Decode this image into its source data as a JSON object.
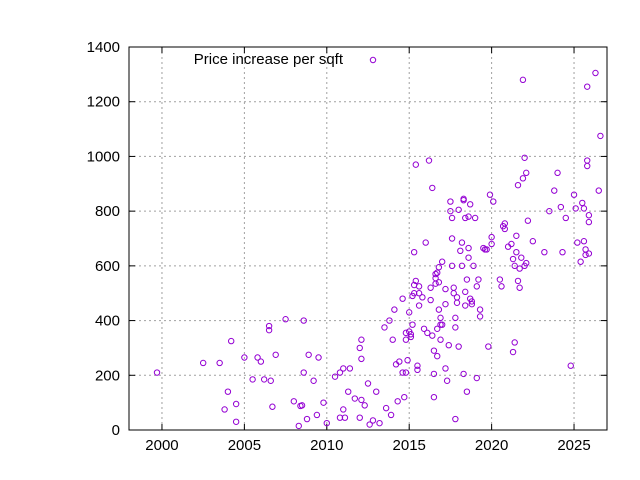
{
  "chart_data": {
    "type": "scatter",
    "title": "",
    "xlabel": "",
    "ylabel": "",
    "xlim": [
      1998,
      2027
    ],
    "ylim": [
      0,
      1400
    ],
    "x_ticks": [
      2000,
      2005,
      2010,
      2015,
      2020,
      2025
    ],
    "y_ticks": [
      0,
      200,
      400,
      600,
      800,
      1000,
      1200,
      1400
    ],
    "grid": true,
    "legend_position": "top-left",
    "series": [
      {
        "name": "Price increase per sqft",
        "color": "#9400d3",
        "marker": "open-circle",
        "points": [
          [
            1999.7,
            210
          ],
          [
            2002.5,
            245
          ],
          [
            2003.5,
            245
          ],
          [
            2003.8,
            75
          ],
          [
            2004.0,
            140
          ],
          [
            2004.2,
            325
          ],
          [
            2004.5,
            95
          ],
          [
            2004.5,
            30
          ],
          [
            2005.0,
            265
          ],
          [
            2005.5,
            185
          ],
          [
            2005.8,
            265
          ],
          [
            2006.0,
            250
          ],
          [
            2006.2,
            185
          ],
          [
            2006.5,
            380
          ],
          [
            2006.5,
            365
          ],
          [
            2006.6,
            180
          ],
          [
            2006.7,
            85
          ],
          [
            2006.9,
            275
          ],
          [
            2007.5,
            405
          ],
          [
            2008.0,
            105
          ],
          [
            2008.3,
            15
          ],
          [
            2008.4,
            88
          ],
          [
            2008.5,
            90
          ],
          [
            2008.6,
            210
          ],
          [
            2008.6,
            400
          ],
          [
            2008.8,
            40
          ],
          [
            2008.9,
            275
          ],
          [
            2009.2,
            180
          ],
          [
            2009.4,
            55
          ],
          [
            2009.5,
            265
          ],
          [
            2009.8,
            100
          ],
          [
            2010.0,
            25
          ],
          [
            2010.5,
            195
          ],
          [
            2010.8,
            45
          ],
          [
            2010.8,
            210
          ],
          [
            2011.0,
            225
          ],
          [
            2011.0,
            75
          ],
          [
            2011.1,
            45
          ],
          [
            2011.3,
            140
          ],
          [
            2011.4,
            225
          ],
          [
            2011.7,
            115
          ],
          [
            2012.0,
            300
          ],
          [
            2012.0,
            45
          ],
          [
            2012.1,
            330
          ],
          [
            2012.1,
            260
          ],
          [
            2012.1,
            110
          ],
          [
            2012.3,
            90
          ],
          [
            2012.5,
            170
          ],
          [
            2012.6,
            20
          ],
          [
            2012.8,
            35
          ],
          [
            2013.0,
            140
          ],
          [
            2013.2,
            25
          ],
          [
            2013.5,
            375
          ],
          [
            2013.6,
            80
          ],
          [
            2013.8,
            400
          ],
          [
            2013.9,
            55
          ],
          [
            2014.0,
            330
          ],
          [
            2014.1,
            440
          ],
          [
            2014.2,
            240
          ],
          [
            2014.3,
            105
          ],
          [
            2014.4,
            250
          ],
          [
            2014.6,
            210
          ],
          [
            2014.6,
            480
          ],
          [
            2014.7,
            120
          ],
          [
            2014.8,
            210
          ],
          [
            2014.8,
            355
          ],
          [
            2014.8,
            330
          ],
          [
            2014.9,
            255
          ],
          [
            2015.0,
            360
          ],
          [
            2015.0,
            430
          ],
          [
            2015.1,
            350
          ],
          [
            2015.1,
            340
          ],
          [
            2015.2,
            490
          ],
          [
            2015.2,
            385
          ],
          [
            2015.3,
            650
          ],
          [
            2015.3,
            530
          ],
          [
            2015.3,
            500
          ],
          [
            2015.4,
            970
          ],
          [
            2015.4,
            545
          ],
          [
            2015.5,
            235
          ],
          [
            2015.5,
            220
          ],
          [
            2015.6,
            525
          ],
          [
            2015.6,
            500
          ],
          [
            2015.6,
            455
          ],
          [
            2015.8,
            485
          ],
          [
            2015.9,
            370
          ],
          [
            2016.0,
            685
          ],
          [
            2016.1,
            355
          ],
          [
            2016.2,
            985
          ],
          [
            2016.3,
            520
          ],
          [
            2016.3,
            475
          ],
          [
            2016.4,
            885
          ],
          [
            2016.4,
            345
          ],
          [
            2016.5,
            290
          ],
          [
            2016.5,
            205
          ],
          [
            2016.5,
            120
          ],
          [
            2016.6,
            555
          ],
          [
            2016.6,
            570
          ],
          [
            2016.6,
            535
          ],
          [
            2016.7,
            575
          ],
          [
            2016.7,
            370
          ],
          [
            2016.7,
            270
          ],
          [
            2016.8,
            595
          ],
          [
            2016.8,
            540
          ],
          [
            2016.8,
            440
          ],
          [
            2016.9,
            410
          ],
          [
            2016.9,
            385
          ],
          [
            2016.9,
            330
          ],
          [
            2017.0,
            615
          ],
          [
            2017.0,
            385
          ],
          [
            2017.2,
            460
          ],
          [
            2017.2,
            515
          ],
          [
            2017.2,
            225
          ],
          [
            2017.3,
            180
          ],
          [
            2017.4,
            310
          ],
          [
            2017.5,
            835
          ],
          [
            2017.5,
            800
          ],
          [
            2017.6,
            775
          ],
          [
            2017.6,
            700
          ],
          [
            2017.6,
            600
          ],
          [
            2017.7,
            520
          ],
          [
            2017.7,
            500
          ],
          [
            2017.8,
            410
          ],
          [
            2017.8,
            375
          ],
          [
            2017.8,
            40
          ],
          [
            2017.9,
            485
          ],
          [
            2017.9,
            465
          ],
          [
            2018.0,
            805
          ],
          [
            2018.0,
            305
          ],
          [
            2018.1,
            655
          ],
          [
            2018.2,
            685
          ],
          [
            2018.2,
            600
          ],
          [
            2018.3,
            845
          ],
          [
            2018.3,
            840
          ],
          [
            2018.3,
            205
          ],
          [
            2018.4,
            775
          ],
          [
            2018.4,
            505
          ],
          [
            2018.4,
            455
          ],
          [
            2018.5,
            550
          ],
          [
            2018.5,
            140
          ],
          [
            2018.6,
            665
          ],
          [
            2018.6,
            630
          ],
          [
            2018.6,
            780
          ],
          [
            2018.7,
            825
          ],
          [
            2018.7,
            480
          ],
          [
            2018.8,
            460
          ],
          [
            2018.8,
            470
          ],
          [
            2018.9,
            600
          ],
          [
            2019.0,
            775
          ],
          [
            2019.1,
            525
          ],
          [
            2019.1,
            190
          ],
          [
            2019.2,
            550
          ],
          [
            2019.3,
            440
          ],
          [
            2019.3,
            415
          ],
          [
            2019.5,
            665
          ],
          [
            2019.6,
            660
          ],
          [
            2019.7,
            660
          ],
          [
            2019.8,
            305
          ],
          [
            2019.9,
            860
          ],
          [
            2020.0,
            680
          ],
          [
            2020.0,
            705
          ],
          [
            2020.1,
            835
          ],
          [
            2020.5,
            550
          ],
          [
            2020.6,
            525
          ],
          [
            2020.7,
            745
          ],
          [
            2020.8,
            735
          ],
          [
            2020.8,
            755
          ],
          [
            2021.0,
            670
          ],
          [
            2021.2,
            680
          ],
          [
            2021.3,
            625
          ],
          [
            2021.3,
            285
          ],
          [
            2021.4,
            600
          ],
          [
            2021.4,
            320
          ],
          [
            2021.5,
            710
          ],
          [
            2021.5,
            650
          ],
          [
            2021.6,
            895
          ],
          [
            2021.6,
            545
          ],
          [
            2021.7,
            590
          ],
          [
            2021.7,
            520
          ],
          [
            2021.8,
            630
          ],
          [
            2021.9,
            920
          ],
          [
            2021.9,
            1280
          ],
          [
            2022.0,
            995
          ],
          [
            2022.0,
            600
          ],
          [
            2022.1,
            940
          ],
          [
            2022.1,
            610
          ],
          [
            2022.2,
            765
          ],
          [
            2022.5,
            690
          ],
          [
            2023.2,
            650
          ],
          [
            2023.5,
            800
          ],
          [
            2023.8,
            875
          ],
          [
            2024.0,
            940
          ],
          [
            2024.2,
            815
          ],
          [
            2024.3,
            650
          ],
          [
            2024.5,
            775
          ],
          [
            2024.8,
            235
          ],
          [
            2025.0,
            860
          ],
          [
            2025.1,
            810
          ],
          [
            2025.2,
            685
          ],
          [
            2025.4,
            615
          ],
          [
            2025.5,
            830
          ],
          [
            2025.6,
            810
          ],
          [
            2025.6,
            690
          ],
          [
            2025.7,
            660
          ],
          [
            2025.7,
            640
          ],
          [
            2025.8,
            985
          ],
          [
            2025.8,
            965
          ],
          [
            2025.8,
            1255
          ],
          [
            2025.9,
            785
          ],
          [
            2025.9,
            760
          ],
          [
            2025.9,
            645
          ],
          [
            2026.3,
            1305
          ],
          [
            2026.5,
            875
          ],
          [
            2026.6,
            1075
          ]
        ]
      }
    ]
  }
}
